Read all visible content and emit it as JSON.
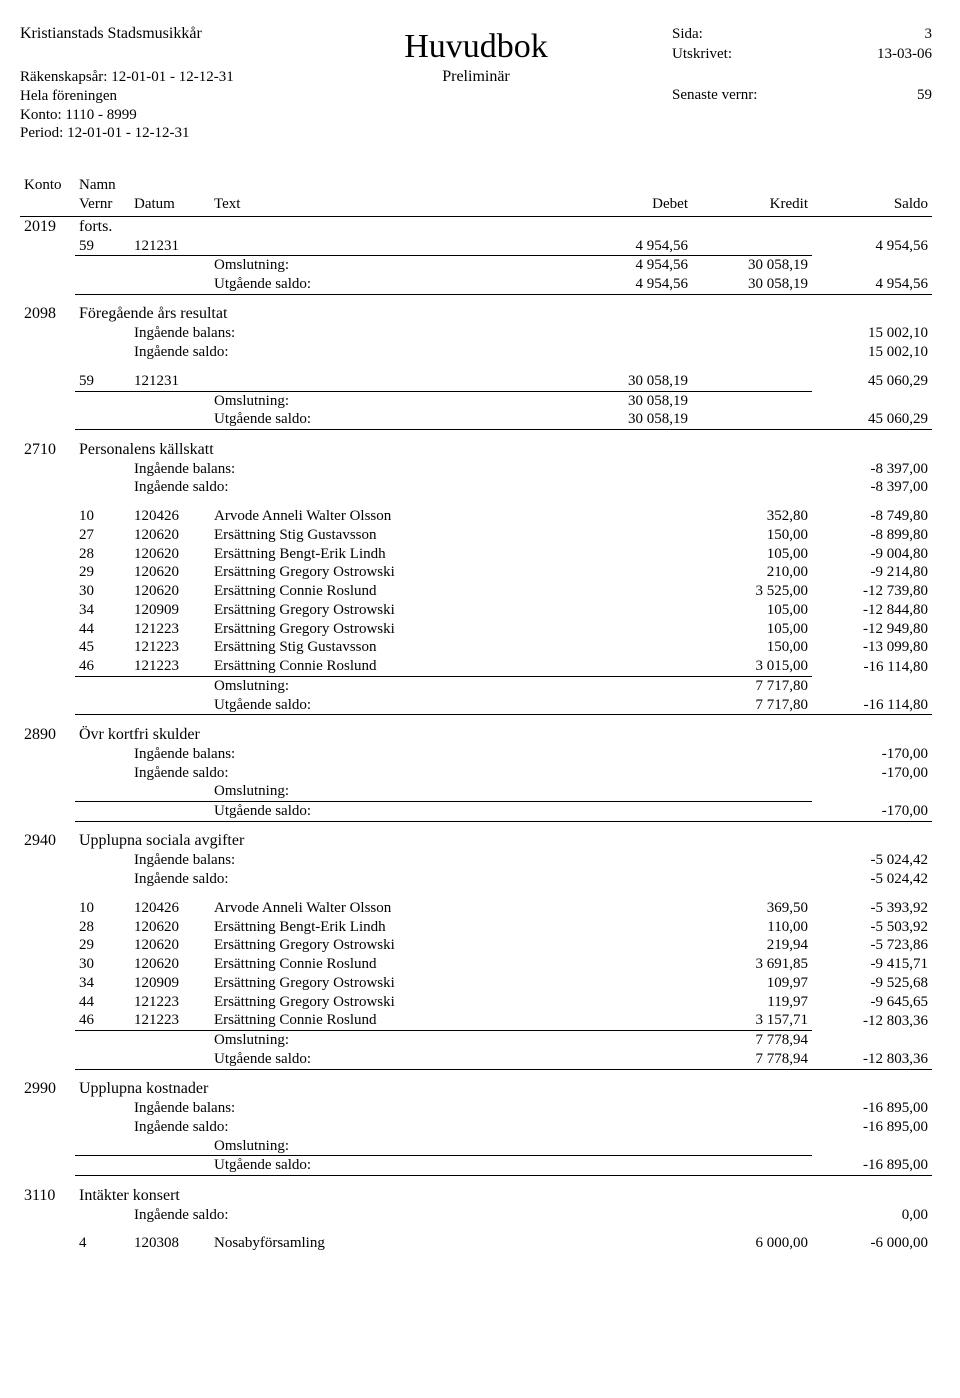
{
  "header": {
    "company": "Kristianstads Stadsmusikkår",
    "title": "Huvudbok",
    "subtitle": "Preliminär",
    "fiscal_year_label": "Räkenskapsår: 12-01-01 - 12-12-31",
    "scope": "Hela föreningen",
    "konto_range": "Konto: 1110 - 8999",
    "period": "Period: 12-01-01 - 12-12-31",
    "right": [
      {
        "label": "Sida:",
        "value": "3"
      },
      {
        "label": "Utskrivet:",
        "value": "13-03-06"
      },
      {
        "label": "Senaste vernr:",
        "value": "59"
      }
    ]
  },
  "columns": {
    "konto": "Konto",
    "namn": "Namn",
    "vernr": "Vernr",
    "datum": "Datum",
    "text": "Text",
    "debet": "Debet",
    "kredit": "Kredit",
    "saldo": "Saldo"
  },
  "labels": {
    "ing_balans": "Ingående balans:",
    "ing_saldo": "Ingående saldo:",
    "omslutning": "Omslutning:",
    "utg_saldo": "Utgående saldo:",
    "forts": "forts."
  },
  "accounts": [
    {
      "konto": "2019",
      "name": "forts.",
      "is_forts": true,
      "rows": [
        {
          "vernr": "59",
          "datum": "121231",
          "text": "",
          "debet": "4 954,56",
          "kredit": "",
          "saldo": "4 954,56",
          "underline": true
        }
      ],
      "omslutning": {
        "debet": "4 954,56",
        "kredit": "30 058,19"
      },
      "utg_saldo": {
        "debet": "4 954,56",
        "kredit": "30 058,19",
        "saldo": "4 954,56"
      }
    },
    {
      "konto": "2098",
      "name": "Föregående års resultat",
      "ing_balans": "15 002,10",
      "ing_saldo": "15 002,10",
      "rows": [
        {
          "vernr": "59",
          "datum": "121231",
          "text": "",
          "debet": "30 058,19",
          "kredit": "",
          "saldo": "45 060,29",
          "underline": true
        }
      ],
      "omslutning": {
        "debet": "30 058,19",
        "kredit": ""
      },
      "utg_saldo": {
        "debet": "30 058,19",
        "kredit": "",
        "saldo": "45 060,29"
      }
    },
    {
      "konto": "2710",
      "name": "Personalens källskatt",
      "ing_balans": "-8 397,00",
      "ing_saldo": "-8 397,00",
      "rows": [
        {
          "vernr": "10",
          "datum": "120426",
          "text": "Arvode Anneli Walter Olsson",
          "debet": "",
          "kredit": "352,80",
          "saldo": "-8 749,80"
        },
        {
          "vernr": "27",
          "datum": "120620",
          "text": "Ersättning Stig Gustavsson",
          "debet": "",
          "kredit": "150,00",
          "saldo": "-8 899,80"
        },
        {
          "vernr": "28",
          "datum": "120620",
          "text": "Ersättning Bengt-Erik Lindh",
          "debet": "",
          "kredit": "105,00",
          "saldo": "-9 004,80"
        },
        {
          "vernr": "29",
          "datum": "120620",
          "text": "Ersättning Gregory Ostrowski",
          "debet": "",
          "kredit": "210,00",
          "saldo": "-9 214,80"
        },
        {
          "vernr": "30",
          "datum": "120620",
          "text": "Ersättning Connie Roslund",
          "debet": "",
          "kredit": "3 525,00",
          "saldo": "-12 739,80"
        },
        {
          "vernr": "34",
          "datum": "120909",
          "text": "Ersättning Gregory Ostrowski",
          "debet": "",
          "kredit": "105,00",
          "saldo": "-12 844,80"
        },
        {
          "vernr": "44",
          "datum": "121223",
          "text": "Ersättning Gregory Ostrowski",
          "debet": "",
          "kredit": "105,00",
          "saldo": "-12 949,80"
        },
        {
          "vernr": "45",
          "datum": "121223",
          "text": "Ersättning Stig Gustavsson",
          "debet": "",
          "kredit": "150,00",
          "saldo": "-13 099,80"
        },
        {
          "vernr": "46",
          "datum": "121223",
          "text": "Ersättning Connie Roslund",
          "debet": "",
          "kredit": "3 015,00",
          "saldo": "-16 114,80",
          "underline": true
        }
      ],
      "omslutning": {
        "debet": "",
        "kredit": "7 717,80"
      },
      "utg_saldo": {
        "debet": "",
        "kredit": "7 717,80",
        "saldo": "-16 114,80"
      }
    },
    {
      "konto": "2890",
      "name": "Övr kortfri skulder",
      "ing_balans": "-170,00",
      "ing_saldo": "-170,00",
      "rows": [],
      "omslutning": {
        "debet": "",
        "kredit": ""
      },
      "utg_saldo": {
        "debet": "",
        "kredit": "",
        "saldo": "-170,00"
      },
      "omslutning_underline": true
    },
    {
      "konto": "2940",
      "name": "Upplupna sociala avgifter",
      "ing_balans": "-5 024,42",
      "ing_saldo": "-5 024,42",
      "rows": [
        {
          "vernr": "10",
          "datum": "120426",
          "text": "Arvode Anneli Walter Olsson",
          "debet": "",
          "kredit": "369,50",
          "saldo": "-5 393,92"
        },
        {
          "vernr": "28",
          "datum": "120620",
          "text": "Ersättning Bengt-Erik Lindh",
          "debet": "",
          "kredit": "110,00",
          "saldo": "-5 503,92"
        },
        {
          "vernr": "29",
          "datum": "120620",
          "text": "Ersättning Gregory Ostrowski",
          "debet": "",
          "kredit": "219,94",
          "saldo": "-5 723,86"
        },
        {
          "vernr": "30",
          "datum": "120620",
          "text": "Ersättning Connie Roslund",
          "debet": "",
          "kredit": "3 691,85",
          "saldo": "-9 415,71"
        },
        {
          "vernr": "34",
          "datum": "120909",
          "text": "Ersättning Gregory Ostrowski",
          "debet": "",
          "kredit": "109,97",
          "saldo": "-9 525,68"
        },
        {
          "vernr": "44",
          "datum": "121223",
          "text": "Ersättning Gregory Ostrowski",
          "debet": "",
          "kredit": "119,97",
          "saldo": "-9 645,65"
        },
        {
          "vernr": "46",
          "datum": "121223",
          "text": "Ersättning Connie Roslund",
          "debet": "",
          "kredit": "3 157,71",
          "saldo": "-12 803,36",
          "underline": true
        }
      ],
      "omslutning": {
        "debet": "",
        "kredit": "7 778,94"
      },
      "utg_saldo": {
        "debet": "",
        "kredit": "7 778,94",
        "saldo": "-12 803,36"
      }
    },
    {
      "konto": "2990",
      "name": "Upplupna kostnader",
      "ing_balans": "-16 895,00",
      "ing_saldo": "-16 895,00",
      "rows": [],
      "omslutning": {
        "debet": "",
        "kredit": ""
      },
      "utg_saldo": {
        "debet": "",
        "kredit": "",
        "saldo": "-16 895,00"
      },
      "omslutning_underline": true
    },
    {
      "konto": "3110",
      "name": "Intäkter konsert",
      "ing_saldo_only": "0,00",
      "rows": [
        {
          "vernr": "4",
          "datum": "120308",
          "text": "Nosabyförsamling",
          "debet": "",
          "kredit": "6 000,00",
          "saldo": "-6 000,00"
        }
      ]
    }
  ]
}
